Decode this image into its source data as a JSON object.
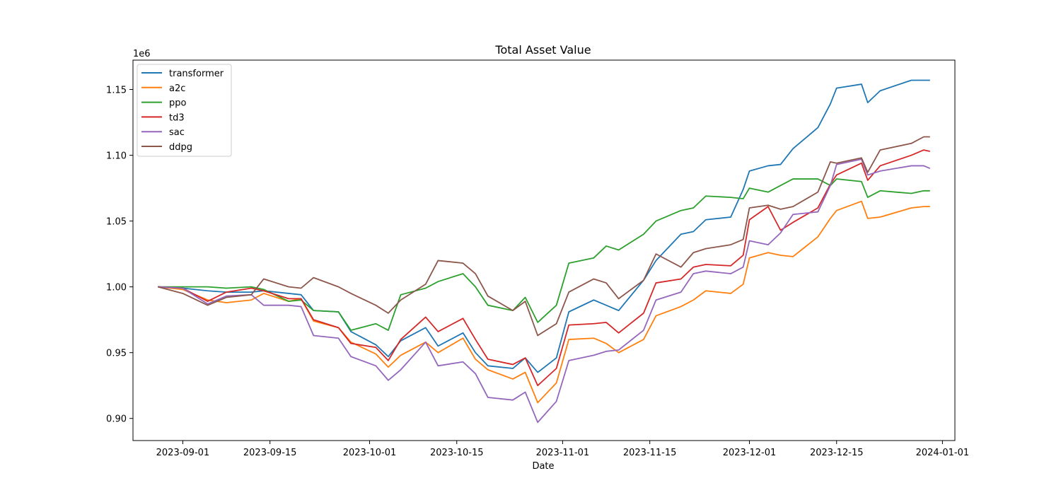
{
  "chart_data": {
    "type": "line",
    "title": "Total Asset Value",
    "xlabel": "Date",
    "ylabel": "",
    "y_offset_label": "1e6",
    "xlim": [
      "2023-08-24",
      "2024-01-03"
    ],
    "ylim": [
      0.8832,
      1.1723
    ],
    "x_ticks": [
      {
        "date": "2023-09-01",
        "label": "2023-09-01"
      },
      {
        "date": "2023-09-15",
        "label": "2023-09-15"
      },
      {
        "date": "2023-10-01",
        "label": "2023-10-01"
      },
      {
        "date": "2023-10-15",
        "label": "2023-10-15"
      },
      {
        "date": "2023-11-01",
        "label": "2023-11-01"
      },
      {
        "date": "2023-11-15",
        "label": "2023-11-15"
      },
      {
        "date": "2023-12-01",
        "label": "2023-12-01"
      },
      {
        "date": "2023-12-15",
        "label": "2023-12-15"
      },
      {
        "date": "2024-01-01",
        "label": "2024-01-01"
      }
    ],
    "y_ticks": [
      {
        "value": 0.9,
        "label": "0.90"
      },
      {
        "value": 0.95,
        "label": "0.95"
      },
      {
        "value": 1.0,
        "label": "1.00"
      },
      {
        "value": 1.05,
        "label": "1.05"
      },
      {
        "value": 1.1,
        "label": "1.10"
      },
      {
        "value": 1.15,
        "label": "1.15"
      }
    ],
    "legend_position": "top-left",
    "grid": false,
    "x": [
      "2023-08-28",
      "2023-09-01",
      "2023-09-05",
      "2023-09-08",
      "2023-09-12",
      "2023-09-14",
      "2023-09-18",
      "2023-09-20",
      "2023-09-22",
      "2023-09-26",
      "2023-09-28",
      "2023-10-02",
      "2023-10-04",
      "2023-10-06",
      "2023-10-10",
      "2023-10-12",
      "2023-10-16",
      "2023-10-18",
      "2023-10-20",
      "2023-10-24",
      "2023-10-26",
      "2023-10-28",
      "2023-10-31",
      "2023-11-02",
      "2023-11-06",
      "2023-11-08",
      "2023-11-10",
      "2023-11-14",
      "2023-11-16",
      "2023-11-20",
      "2023-11-22",
      "2023-11-24",
      "2023-11-28",
      "2023-11-30",
      "2023-12-01",
      "2023-12-04",
      "2023-12-06",
      "2023-12-08",
      "2023-12-12",
      "2023-12-14",
      "2023-12-15",
      "2023-12-19",
      "2023-12-20",
      "2023-12-22",
      "2023-12-27",
      "2023-12-29",
      "2023-12-30"
    ],
    "series": [
      {
        "name": "transformer",
        "color": "#1f77b4",
        "values": [
          1.0,
          0.999,
          0.997,
          0.996,
          0.996,
          0.997,
          0.995,
          0.994,
          0.982,
          0.981,
          0.966,
          0.956,
          0.947,
          0.959,
          0.969,
          0.955,
          0.965,
          0.95,
          0.94,
          0.938,
          0.946,
          0.935,
          0.946,
          0.981,
          0.99,
          0.986,
          0.982,
          1.005,
          1.02,
          1.04,
          1.042,
          1.051,
          1.053,
          1.074,
          1.088,
          1.092,
          1.093,
          1.105,
          1.121,
          1.139,
          1.151,
          1.154,
          1.14,
          1.149,
          1.157,
          1.157,
          1.157
        ]
      },
      {
        "name": "a2c",
        "color": "#ff7f0e",
        "values": [
          1.0,
          0.998,
          0.99,
          0.988,
          0.99,
          0.995,
          0.989,
          0.991,
          0.974,
          0.969,
          0.958,
          0.949,
          0.939,
          0.948,
          0.958,
          0.95,
          0.961,
          0.945,
          0.937,
          0.93,
          0.935,
          0.912,
          0.927,
          0.96,
          0.961,
          0.957,
          0.95,
          0.96,
          0.978,
          0.985,
          0.99,
          0.997,
          0.995,
          1.002,
          1.022,
          1.026,
          1.024,
          1.023,
          1.038,
          1.052,
          1.058,
          1.065,
          1.052,
          1.053,
          1.06,
          1.061,
          1.061
        ]
      },
      {
        "name": "ppo",
        "color": "#2ca02c",
        "values": [
          1.0,
          1.0,
          1.0,
          0.999,
          1.0,
          0.998,
          0.989,
          0.99,
          0.982,
          0.981,
          0.967,
          0.972,
          0.967,
          0.994,
          0.999,
          1.004,
          1.01,
          1.0,
          0.986,
          0.982,
          0.992,
          0.973,
          0.986,
          1.018,
          1.022,
          1.031,
          1.028,
          1.04,
          1.05,
          1.058,
          1.06,
          1.069,
          1.068,
          1.067,
          1.075,
          1.072,
          1.077,
          1.082,
          1.082,
          1.077,
          1.082,
          1.08,
          1.068,
          1.073,
          1.071,
          1.073,
          1.073
        ]
      },
      {
        "name": "td3",
        "color": "#d62728",
        "values": [
          1.0,
          0.999,
          0.989,
          0.996,
          0.999,
          0.997,
          0.991,
          0.991,
          0.975,
          0.969,
          0.957,
          0.954,
          0.944,
          0.96,
          0.977,
          0.966,
          0.976,
          0.96,
          0.945,
          0.941,
          0.946,
          0.925,
          0.938,
          0.971,
          0.972,
          0.973,
          0.965,
          0.98,
          1.003,
          1.006,
          1.015,
          1.017,
          1.016,
          1.024,
          1.051,
          1.061,
          1.043,
          1.049,
          1.06,
          1.078,
          1.085,
          1.094,
          1.081,
          1.092,
          1.1,
          1.104,
          1.103
        ]
      },
      {
        "name": "sac",
        "color": "#9467bd",
        "values": [
          1.0,
          0.999,
          0.987,
          0.993,
          0.994,
          0.986,
          0.986,
          0.985,
          0.963,
          0.961,
          0.947,
          0.94,
          0.929,
          0.937,
          0.958,
          0.94,
          0.943,
          0.934,
          0.916,
          0.914,
          0.92,
          0.897,
          0.913,
          0.944,
          0.948,
          0.951,
          0.952,
          0.967,
          0.99,
          0.996,
          1.01,
          1.012,
          1.01,
          1.015,
          1.035,
          1.032,
          1.041,
          1.055,
          1.057,
          1.077,
          1.093,
          1.097,
          1.085,
          1.088,
          1.092,
          1.092,
          1.09
        ]
      },
      {
        "name": "ddpg",
        "color": "#8c564b",
        "values": [
          1.0,
          0.995,
          0.986,
          0.992,
          0.994,
          1.006,
          1.0,
          0.999,
          1.007,
          1.0,
          0.995,
          0.986,
          0.98,
          0.99,
          1.002,
          1.02,
          1.018,
          1.01,
          0.993,
          0.982,
          0.989,
          0.963,
          0.972,
          0.996,
          1.006,
          1.003,
          0.991,
          1.005,
          1.025,
          1.015,
          1.026,
          1.029,
          1.032,
          1.036,
          1.06,
          1.062,
          1.059,
          1.061,
          1.072,
          1.095,
          1.094,
          1.098,
          1.087,
          1.104,
          1.109,
          1.114,
          1.114
        ]
      }
    ]
  }
}
